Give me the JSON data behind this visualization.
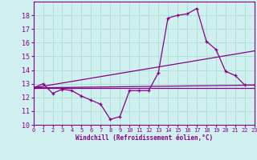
{
  "title": "",
  "xlabel": "Windchill (Refroidissement éolien,°C)",
  "background_color": "#cff0ee",
  "grid_color": "#aaddcc",
  "line_color": "#880088",
  "xlim": [
    0,
    23
  ],
  "ylim": [
    10,
    19
  ],
  "xticks": [
    0,
    1,
    2,
    3,
    4,
    5,
    6,
    7,
    8,
    9,
    10,
    11,
    12,
    13,
    14,
    15,
    16,
    17,
    18,
    19,
    20,
    21,
    22,
    23
  ],
  "yticks": [
    10,
    11,
    12,
    13,
    14,
    15,
    16,
    17,
    18
  ],
  "line1_x": [
    0,
    1,
    2,
    3,
    4,
    5,
    6,
    7,
    8,
    9,
    10,
    11,
    12,
    13,
    14,
    15,
    16,
    17,
    18,
    19,
    20,
    21,
    22,
    23
  ],
  "line1_y": [
    12.7,
    13.0,
    12.3,
    12.6,
    12.5,
    12.1,
    11.8,
    11.5,
    10.4,
    10.6,
    12.5,
    12.5,
    12.5,
    13.8,
    17.8,
    18.0,
    18.1,
    18.5,
    16.1,
    15.5,
    13.9,
    13.6,
    12.9,
    12.9
  ],
  "line2_x": [
    0,
    23
  ],
  "line2_y": [
    12.7,
    12.9
  ],
  "line3_x": [
    0,
    23
  ],
  "line3_y": [
    12.7,
    15.4
  ],
  "line4_x": [
    0,
    23
  ],
  "line4_y": [
    12.7,
    12.7
  ]
}
